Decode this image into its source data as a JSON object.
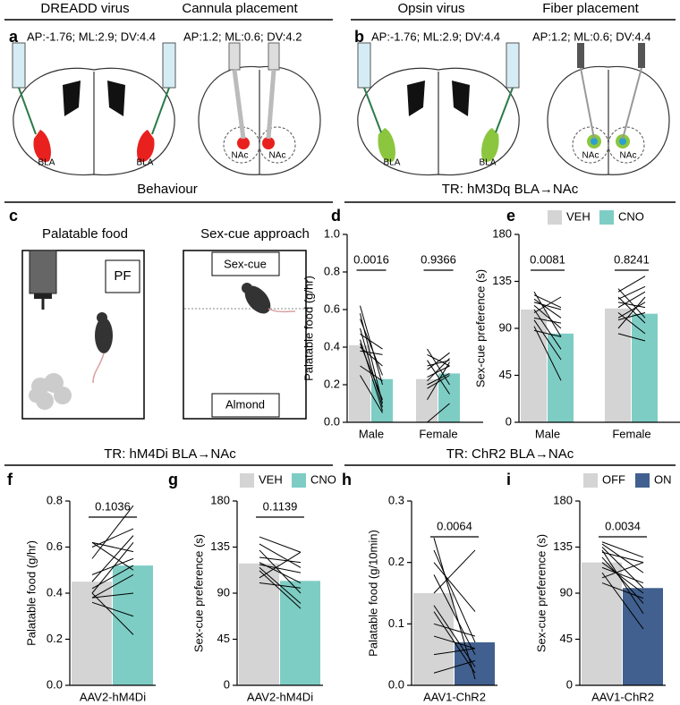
{
  "headers": [
    "DREADD virus",
    "Cannula placement",
    "Opsin virus",
    "Fiber placement",
    "Behaviour",
    "TR: hM3Dq BLA→NAc",
    "TR: hM4Di BLA→NAc",
    "TR: ChR2 BLA→NAc"
  ],
  "panel_letters": [
    "a",
    "b",
    "c",
    "d",
    "e",
    "f",
    "g",
    "h",
    "i"
  ],
  "a": {
    "coords_virus": "AP:-1.76; ML:2.9; DV:4.4",
    "coords_cannula": "AP:1.2; ML:0.6; DV:4.2",
    "region_labels": [
      "BLA",
      "BLA",
      "NAc",
      "NAc"
    ]
  },
  "b": {
    "coords_virus": "AP:-1.76; ML:2.9; DV:4.4",
    "coords_fiber": "AP:1.2; ML:0.6; DV:4.4",
    "region_labels": [
      "BLA",
      "BLA",
      "NAc",
      "NAc"
    ]
  },
  "c": {
    "titles": [
      "Palatable food",
      "Sex-cue approach"
    ],
    "labels": [
      "PF",
      "Sex-cue",
      "Almond"
    ]
  },
  "chart_data": [
    {
      "type": "bar",
      "y_label": "Palatable food (g/hr)",
      "categories": [
        "Male",
        "Female"
      ],
      "series": [
        {
          "name": "VEH",
          "color": "#d4d4d4",
          "values": [
            0.41,
            0.23
          ]
        },
        {
          "name": "CNO",
          "color": "#7ecdc4",
          "values": [
            0.23,
            0.26
          ]
        }
      ],
      "pairs": [
        [
          [
            0.62,
            0.2
          ],
          [
            0.58,
            0.1
          ],
          [
            0.55,
            0.25
          ],
          [
            0.5,
            0.08
          ],
          [
            0.47,
            0.39
          ],
          [
            0.44,
            0.06
          ],
          [
            0.42,
            0.12
          ],
          [
            0.4,
            0.3
          ],
          [
            0.38,
            0.36
          ],
          [
            0.3,
            0.22
          ],
          [
            0.25,
            0.05
          ]
        ],
        [
          [
            0.39,
            0.2
          ],
          [
            0.36,
            0.3
          ],
          [
            0.33,
            0.15
          ],
          [
            0.3,
            0.33
          ],
          [
            0.28,
            0.37
          ],
          [
            0.24,
            0.3
          ],
          [
            0.22,
            0.34
          ],
          [
            0.2,
            0.26
          ],
          [
            0.18,
            0.25
          ],
          [
            0.12,
            0.32
          ],
          [
            0.0,
            0.1
          ]
        ]
      ],
      "p_values": [
        "0.0016",
        "0.9366"
      ],
      "legend": false,
      "ylim": [
        0,
        1.0
      ],
      "yticks": [
        {
          "value": 0,
          "label": "0.0"
        },
        0.2,
        0.4,
        0.6,
        0.8,
        {
          "value": 1.0,
          "label": "1.0"
        }
      ]
    },
    {
      "type": "bar",
      "y_label": "Sex-cue preference (s)",
      "categories": [
        "Male",
        "Female"
      ],
      "series": [
        {
          "name": "VEH",
          "color": "#d4d4d4",
          "values": [
            108,
            109
          ]
        },
        {
          "name": "CNO",
          "color": "#7ecdc4",
          "values": [
            85,
            104
          ]
        }
      ],
      "pairs": [
        [
          [
            125,
            82
          ],
          [
            122,
            110
          ],
          [
            118,
            100
          ],
          [
            115,
            108
          ],
          [
            112,
            90
          ],
          [
            108,
            70
          ],
          [
            105,
            120
          ],
          [
            100,
            95
          ],
          [
            98,
            60
          ],
          [
            92,
            40
          ],
          [
            88,
            82
          ]
        ],
        [
          [
            128,
            100
          ],
          [
            125,
            140
          ],
          [
            120,
            95
          ],
          [
            118,
            130
          ],
          [
            115,
            110
          ],
          [
            110,
            125
          ],
          [
            105,
            85
          ],
          [
            100,
            115
          ],
          [
            98,
            105
          ],
          [
            90,
            120
          ],
          [
            85,
            78
          ]
        ]
      ],
      "p_values": [
        "0.0081",
        "0.8241"
      ],
      "legend": true,
      "ylim": [
        0,
        180
      ],
      "yticks": [
        0,
        45,
        90,
        135,
        180
      ]
    },
    {
      "type": "bar",
      "y_label": "Palatable food (g/hr)",
      "categories": [
        "AAV2-hM4Di"
      ],
      "series": [
        {
          "name": "VEH",
          "color": "#d4d4d4",
          "values": [
            0.45
          ]
        },
        {
          "name": "CNO",
          "color": "#7ecdc4",
          "values": [
            0.52
          ]
        }
      ],
      "pairs": [
        [
          [
            0.62,
            0.5
          ],
          [
            0.62,
            0.58
          ],
          [
            0.6,
            0.68
          ],
          [
            0.55,
            0.78
          ],
          [
            0.48,
            0.55
          ],
          [
            0.45,
            0.65
          ],
          [
            0.42,
            0.52
          ],
          [
            0.4,
            0.62
          ],
          [
            0.38,
            0.4
          ],
          [
            0.36,
            0.3
          ],
          [
            0.4,
            0.22
          ],
          [
            0.38,
            0.48
          ]
        ]
      ],
      "p_values": [
        "0.1036"
      ],
      "legend": false,
      "ylim": [
        0,
        0.8
      ],
      "yticks": [
        {
          "value": 0,
          "label": "0.0"
        },
        0.2,
        0.4,
        0.6,
        0.8
      ]
    },
    {
      "type": "bar",
      "y_label": "Sex-cue preference (s)",
      "categories": [
        "AAV2-hM4Di"
      ],
      "series": [
        {
          "name": "VEH",
          "color": "#d4d4d4",
          "values": [
            119
          ]
        },
        {
          "name": "CNO",
          "color": "#7ecdc4",
          "values": [
            102
          ]
        }
      ],
      "pairs": [
        [
          [
            145,
            130
          ],
          [
            138,
            115
          ],
          [
            132,
            90
          ],
          [
            125,
            120
          ],
          [
            120,
            100
          ],
          [
            118,
            110
          ],
          [
            115,
            80
          ],
          [
            112,
            75
          ],
          [
            105,
            130
          ],
          [
            100,
            95
          ]
        ]
      ],
      "p_values": [
        "0.1139"
      ],
      "legend": true,
      "ylim": [
        0,
        180
      ],
      "yticks": [
        0,
        45,
        90,
        135,
        180
      ]
    },
    {
      "type": "bar",
      "y_label": "Palatable food (g/10min)",
      "categories": [
        "AAV1-ChR2"
      ],
      "series": [
        {
          "name": "OFF",
          "color": "#d4d4d4",
          "values": [
            0.15
          ]
        },
        {
          "name": "ON",
          "color": "#41608f",
          "values": [
            0.07
          ]
        }
      ],
      "pairs": [
        [
          [
            0.24,
            0.01
          ],
          [
            0.22,
            0.07
          ],
          [
            0.2,
            0.12
          ],
          [
            0.18,
            0.05
          ],
          [
            0.15,
            0.22
          ],
          [
            0.13,
            0.03
          ],
          [
            0.12,
            0.02
          ],
          [
            0.1,
            0.08
          ],
          [
            0.08,
            0.06
          ],
          [
            0.05,
            0.06
          ],
          [
            0.02,
            0.04
          ]
        ]
      ],
      "p_values": [
        "0.0064"
      ],
      "legend": false,
      "ylim": [
        0,
        0.3
      ],
      "yticks": [
        {
          "value": 0,
          "label": "0.0"
        },
        0.1,
        0.2,
        0.3
      ]
    },
    {
      "type": "bar",
      "y_label": "Sex-cue preference (s)",
      "categories": [
        "AAV1-ChR2"
      ],
      "series": [
        {
          "name": "OFF",
          "color": "#d4d4d4",
          "values": [
            120
          ]
        },
        {
          "name": "ON",
          "color": "#41608f",
          "values": [
            95
          ]
        }
      ],
      "pairs": [
        [
          [
            140,
            125
          ],
          [
            138,
            110
          ],
          [
            135,
            95
          ],
          [
            132,
            70
          ],
          [
            130,
            120
          ],
          [
            125,
            80
          ],
          [
            120,
            90
          ],
          [
            115,
            100
          ],
          [
            110,
            55
          ],
          [
            105,
            120
          ],
          [
            100,
            85
          ]
        ]
      ],
      "p_values": [
        "0.0034"
      ],
      "legend": true,
      "ylim": [
        0,
        180
      ],
      "yticks": [
        0,
        45,
        90,
        135,
        180
      ]
    }
  ]
}
